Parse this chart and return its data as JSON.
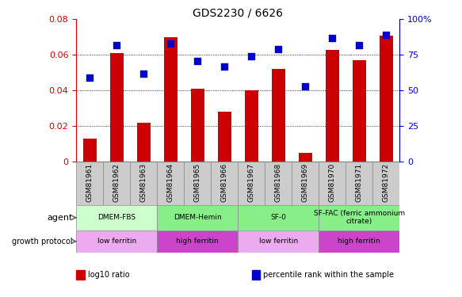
{
  "title": "GDS2230 / 6626",
  "categories": [
    "GSM81961",
    "GSM81962",
    "GSM81963",
    "GSM81964",
    "GSM81965",
    "GSM81966",
    "GSM81967",
    "GSM81968",
    "GSM81969",
    "GSM81970",
    "GSM81971",
    "GSM81972"
  ],
  "log10_ratio": [
    0.013,
    0.061,
    0.022,
    0.07,
    0.041,
    0.028,
    0.04,
    0.052,
    0.005,
    0.063,
    0.057,
    0.071
  ],
  "percentile_rank": [
    59,
    82,
    62,
    83,
    71,
    67,
    74,
    79,
    53,
    87,
    82,
    89
  ],
  "bar_color": "#cc0000",
  "dot_color": "#0000cc",
  "ylim_left": [
    0,
    0.08
  ],
  "ylim_right": [
    0,
    100
  ],
  "yticks_left": [
    0,
    0.02,
    0.04,
    0.06,
    0.08
  ],
  "yticks_right": [
    0,
    25,
    50,
    75,
    100
  ],
  "ytick_labels_right": [
    "0",
    "25",
    "50",
    "75",
    "100%"
  ],
  "grid_values": [
    0.02,
    0.04,
    0.06
  ],
  "agent_groups": [
    {
      "label": "DMEM-FBS",
      "start": 0,
      "end": 3,
      "color": "#ccffcc"
    },
    {
      "label": "DMEM-Hemin",
      "start": 3,
      "end": 6,
      "color": "#88ee88"
    },
    {
      "label": "SF-0",
      "start": 6,
      "end": 9,
      "color": "#88ee88"
    },
    {
      "label": "SF-FAC (ferric ammonium\ncitrate)",
      "start": 9,
      "end": 12,
      "color": "#88ee88"
    }
  ],
  "growth_groups": [
    {
      "label": "low ferritin",
      "start": 0,
      "end": 3,
      "color": "#ee88ee"
    },
    {
      "label": "high ferritin",
      "start": 3,
      "end": 6,
      "color": "#cc44cc"
    },
    {
      "label": "low ferritin",
      "start": 6,
      "end": 9,
      "color": "#ee88ee"
    },
    {
      "label": "high ferritin",
      "start": 9,
      "end": 12,
      "color": "#cc44cc"
    }
  ],
  "legend_items": [
    {
      "label": "log10 ratio",
      "color": "#cc0000"
    },
    {
      "label": "percentile rank within the sample",
      "color": "#0000cc"
    }
  ],
  "bar_width": 0.5,
  "dot_size": 40,
  "background_color": "#ffffff",
  "plot_bg_color": "#ffffff",
  "label_color_left": "#cc0000",
  "label_color_right": "#0000cc",
  "n_cats": 12,
  "sample_label_bg": "#cccccc",
  "sample_label_border": "#888888"
}
